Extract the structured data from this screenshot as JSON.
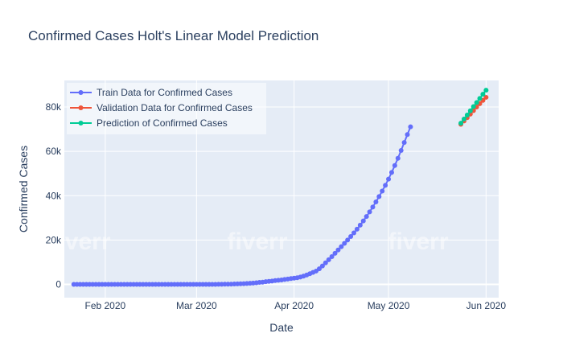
{
  "chart_data": {
    "type": "line",
    "title": "Confirmed Cases Holt's Linear Model Prediction",
    "xlabel": "Date",
    "ylabel": "Confirmed Cases",
    "xlim": [
      "2020-01-19",
      "2020-06-05"
    ],
    "ylim": [
      -6000,
      92000
    ],
    "x_ticks": [
      {
        "date": "2020-02-01",
        "label": "Feb 2020"
      },
      {
        "date": "2020-03-01",
        "label": "Mar 2020"
      },
      {
        "date": "2020-04-01",
        "label": "Apr 2020"
      },
      {
        "date": "2020-05-01",
        "label": "May 2020"
      },
      {
        "date": "2020-06-01",
        "label": "Jun 2020"
      }
    ],
    "y_ticks": [
      {
        "value": 0,
        "label": "0"
      },
      {
        "value": 20000,
        "label": "20k"
      },
      {
        "value": 40000,
        "label": "40k"
      },
      {
        "value": 60000,
        "label": "60k"
      },
      {
        "value": 80000,
        "label": "80k"
      }
    ],
    "grid": true,
    "legend_position": "top-left",
    "background_color": "#e5ecf6",
    "watermark": "fiverr",
    "series": [
      {
        "name": "Train Data for Confirmed Cases",
        "color": "#636efa",
        "start_date": "2020-01-22",
        "values": [
          0,
          0,
          0,
          0,
          0,
          0,
          0,
          0,
          0,
          0,
          0,
          0,
          0,
          0,
          0,
          0,
          0,
          0,
          0,
          0,
          0,
          0,
          0,
          0,
          0,
          0,
          0,
          0,
          0,
          0,
          0,
          0,
          0,
          0,
          0,
          0,
          0,
          0,
          0,
          0,
          0,
          0,
          0,
          0,
          0,
          0,
          20,
          40,
          60,
          80,
          100,
          150,
          200,
          250,
          300,
          400,
          500,
          600,
          700,
          900,
          1000,
          1200,
          1350,
          1500,
          1700,
          1850,
          2000,
          2200,
          2400,
          2600,
          2800,
          3000,
          3300,
          3700,
          4200,
          4800,
          5400,
          6000,
          7000,
          8300,
          9700,
          11100,
          12500,
          14000,
          15500,
          17000,
          18500,
          20000,
          21600,
          23200,
          24900,
          26700,
          28600,
          30600,
          32700,
          34900,
          37200,
          39600,
          42100,
          44700,
          47500,
          50500,
          53600,
          56900,
          60400,
          64000,
          67600,
          71100
        ]
      },
      {
        "name": "Validation Data for Confirmed Cases",
        "color": "#ef553b",
        "start_date": "2020-05-24",
        "values": [
          72200,
          73700,
          75200,
          76800,
          78400,
          80000,
          81500,
          83000,
          84400
        ]
      },
      {
        "name": "Prediction of Confirmed Cases",
        "color": "#00cc96",
        "start_date": "2020-05-24",
        "values": [
          72700,
          74600,
          76400,
          78300,
          80200,
          82000,
          83900,
          85800,
          87600
        ]
      }
    ]
  }
}
